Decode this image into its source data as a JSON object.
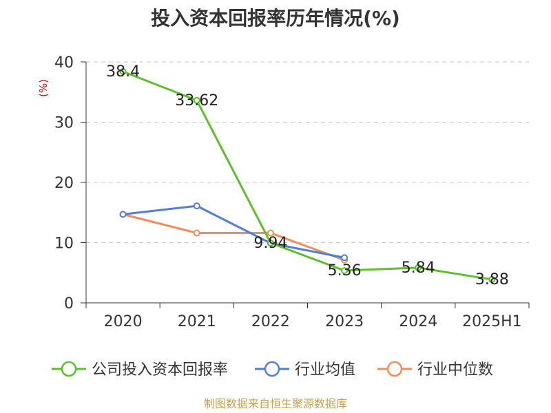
{
  "chart_data": {
    "type": "line",
    "title": "投入资本回报率历年情况(%)",
    "ylabel": "(%)",
    "categories": [
      "2020",
      "2021",
      "2022",
      "2023",
      "2024",
      "2025H1"
    ],
    "ylim": [
      0,
      40
    ],
    "yticks": [
      0,
      10,
      20,
      30,
      40
    ],
    "grid": true,
    "legend_position": "bottom",
    "series": [
      {
        "name": "公司投入资本回报率",
        "color": "#5dbf2a",
        "values": [
          38.4,
          33.62,
          9.94,
          5.36,
          5.84,
          3.88
        ],
        "labels": [
          "38.4",
          "33.62",
          "9.94",
          "5.36",
          "5.84",
          "3.88"
        ]
      },
      {
        "name": "行业均值",
        "color": "#4f7fd6",
        "values": [
          14.7,
          16.1,
          9.9,
          7.5,
          null,
          null
        ],
        "labels": []
      },
      {
        "name": "行业中位数",
        "color": "#f28c5b",
        "values": [
          14.7,
          11.6,
          11.6,
          7.1,
          null,
          null
        ],
        "labels": []
      }
    ]
  },
  "source_text": "制图数据来自恒生聚源数据库"
}
